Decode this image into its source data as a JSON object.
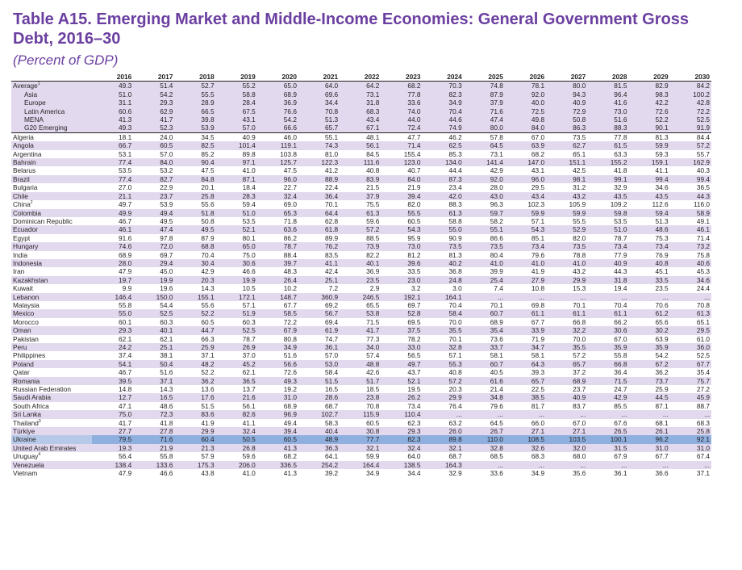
{
  "title": "Table A15. Emerging Market and Middle-Income Economies: General Government Gross Debt, 2016–30",
  "subtitle": "(Percent of GDP)",
  "years": [
    "2016",
    "2017",
    "2018",
    "2019",
    "2020",
    "2021",
    "2022",
    "2023",
    "2024",
    "2025",
    "2026",
    "2027",
    "2028",
    "2029",
    "2030"
  ],
  "aggregates": [
    {
      "name": "Average",
      "note": "1",
      "values": [
        "49.3",
        "51.4",
        "52.7",
        "55.2",
        "65.0",
        "64.0",
        "64.2",
        "68.2",
        "70.3",
        "74.8",
        "78.1",
        "80.0",
        "81.5",
        "82.9",
        "84.2"
      ]
    },
    {
      "name": "Asia",
      "values": [
        "51.0",
        "54.2",
        "55.5",
        "58.8",
        "68.9",
        "69.6",
        "73.1",
        "77.8",
        "82.3",
        "87.9",
        "92.0",
        "94.3",
        "96.4",
        "98.3",
        "100.2"
      ]
    },
    {
      "name": "Europe",
      "values": [
        "31.1",
        "29.3",
        "28.9",
        "28.4",
        "36.9",
        "34.4",
        "31.8",
        "33.6",
        "34.9",
        "37.9",
        "40.0",
        "40.9",
        "41.6",
        "42.2",
        "42.8"
      ]
    },
    {
      "name": "Latin America",
      "values": [
        "60.6",
        "62.9",
        "66.5",
        "67.5",
        "76.6",
        "70.8",
        "68.3",
        "74.0",
        "70.4",
        "71.6",
        "72.5",
        "72.9",
        "73.0",
        "72.6",
        "72.2"
      ]
    },
    {
      "name": "MENA",
      "values": [
        "41.3",
        "41.7",
        "39.8",
        "43.1",
        "54.2",
        "51.3",
        "43.4",
        "44.0",
        "44.6",
        "47.4",
        "49.8",
        "50.8",
        "51.6",
        "52.2",
        "52.5"
      ]
    },
    {
      "name": "G20 Emerging",
      "values": [
        "49.3",
        "52.3",
        "53.9",
        "57.0",
        "66.6",
        "65.7",
        "67.1",
        "72.4",
        "74.9",
        "80.0",
        "84.0",
        "86.3",
        "88.3",
        "90.1",
        "91.9"
      ]
    }
  ],
  "countries": [
    {
      "name": "Algeria",
      "values": [
        "18.1",
        "24.0",
        "34.5",
        "40.9",
        "46.0",
        "55.1",
        "48.1",
        "47.7",
        "46.2",
        "57.8",
        "67.0",
        "73.5",
        "77.8",
        "81.3",
        "84.4"
      ]
    },
    {
      "name": "Angola",
      "values": [
        "66.7",
        "60.5",
        "82.5",
        "101.4",
        "119.1",
        "74.3",
        "56.1",
        "71.4",
        "62.5",
        "64.5",
        "63.9",
        "62.7",
        "61.5",
        "59.9",
        "57.2"
      ]
    },
    {
      "name": "Argentina",
      "values": [
        "53.1",
        "57.0",
        "85.2",
        "89.8",
        "103.8",
        "81.0",
        "84.5",
        "155.4",
        "85.3",
        "73.1",
        "68.2",
        "65.1",
        "63.3",
        "59.3",
        "55.7"
      ]
    },
    {
      "name": "Bahrain",
      "values": [
        "77.4",
        "84.0",
        "90.4",
        "97.1",
        "125.7",
        "122.3",
        "111.6",
        "123.0",
        "134.0",
        "141.4",
        "147.0",
        "151.1",
        "155.2",
        "159.1",
        "162.9"
      ]
    },
    {
      "name": "Belarus",
      "values": [
        "53.5",
        "53.2",
        "47.5",
        "41.0",
        "47.5",
        "41.2",
        "40.8",
        "40.7",
        "44.4",
        "42.9",
        "43.1",
        "42.5",
        "41.8",
        "41.1",
        "40.3"
      ]
    },
    {
      "name": "Brazil",
      "values": [
        "77.4",
        "82.7",
        "84.8",
        "87.1",
        "96.0",
        "88.9",
        "83.9",
        "84.0",
        "87.3",
        "92.0",
        "96.0",
        "98.1",
        "99.1",
        "99.4",
        "99.4"
      ]
    },
    {
      "name": "Bulgaria",
      "values": [
        "27.0",
        "22.9",
        "20.1",
        "18.4",
        "22.7",
        "22.4",
        "21.5",
        "21.9",
        "23.4",
        "28.0",
        "29.5",
        "31.2",
        "32.9",
        "34.6",
        "36.5"
      ]
    },
    {
      "name": "Chile",
      "values": [
        "21.1",
        "23.7",
        "25.8",
        "28.3",
        "32.4",
        "36.4",
        "37.9",
        "39.4",
        "42.0",
        "43.0",
        "43.4",
        "43.2",
        "43.5",
        "43.5",
        "44.3"
      ]
    },
    {
      "name": "China",
      "note": "2",
      "values": [
        "49.7",
        "53.9",
        "55.6",
        "59.4",
        "69.0",
        "70.1",
        "75.5",
        "82.0",
        "88.3",
        "96.3",
        "102.3",
        "105.9",
        "109.2",
        "112.6",
        "116.0"
      ]
    },
    {
      "name": "Colombia",
      "values": [
        "49.9",
        "49.4",
        "51.8",
        "51.0",
        "65.3",
        "64.4",
        "61.3",
        "55.5",
        "61.3",
        "59.7",
        "59.9",
        "59.9",
        "59.8",
        "59.4",
        "58.9"
      ]
    },
    {
      "name": "Dominican Republic",
      "values": [
        "46.7",
        "49.5",
        "50.8",
        "53.5",
        "71.8",
        "62.8",
        "59.6",
        "60.5",
        "58.8",
        "58.2",
        "57.1",
        "55.5",
        "53.5",
        "51.3",
        "49.1"
      ]
    },
    {
      "name": "Ecuador",
      "values": [
        "46.1",
        "47.4",
        "49.5",
        "52.1",
        "63.6",
        "61.8",
        "57.2",
        "54.3",
        "55.0",
        "55.1",
        "54.3",
        "52.9",
        "51.0",
        "48.6",
        "46.1"
      ]
    },
    {
      "name": "Egypt",
      "values": [
        "91.6",
        "97.8",
        "87.9",
        "80.1",
        "86.2",
        "89.9",
        "88.5",
        "95.9",
        "90.9",
        "86.6",
        "85.1",
        "82.0",
        "78.7",
        "75.3",
        "71.4"
      ]
    },
    {
      "name": "Hungary",
      "values": [
        "74.6",
        "72.0",
        "68.8",
        "65.0",
        "78.7",
        "76.2",
        "73.9",
        "73.0",
        "73.5",
        "73.5",
        "73.4",
        "73.5",
        "73.4",
        "73.4",
        "73.2"
      ]
    },
    {
      "name": "India",
      "values": [
        "68.9",
        "69.7",
        "70.4",
        "75.0",
        "88.4",
        "83.5",
        "82.2",
        "81.2",
        "81.3",
        "80.4",
        "79.6",
        "78.8",
        "77.9",
        "76.9",
        "75.8"
      ]
    },
    {
      "name": "Indonesia",
      "values": [
        "28.0",
        "29.4",
        "30.4",
        "30.6",
        "39.7",
        "41.1",
        "40.1",
        "39.6",
        "40.2",
        "41.0",
        "41.0",
        "41.0",
        "40.9",
        "40.8",
        "40.6"
      ]
    },
    {
      "name": "Iran",
      "values": [
        "47.9",
        "45.0",
        "42.9",
        "46.6",
        "48.3",
        "42.4",
        "36.9",
        "33.5",
        "36.8",
        "39.9",
        "41.9",
        "43.2",
        "44.3",
        "45.1",
        "45.3"
      ]
    },
    {
      "name": "Kazakhstan",
      "values": [
        "19.7",
        "19.9",
        "20.3",
        "19.9",
        "26.4",
        "25.1",
        "23.5",
        "23.0",
        "24.8",
        "25.4",
        "27.9",
        "29.9",
        "31.8",
        "33.5",
        "34.6"
      ]
    },
    {
      "name": "Kuwait",
      "values": [
        "9.9",
        "19.6",
        "14.3",
        "10.5",
        "10.2",
        "7.2",
        "2.9",
        "3.2",
        "3.0",
        "7.4",
        "10.8",
        "15.3",
        "19.4",
        "23.5",
        "24.4"
      ]
    },
    {
      "name": "Lebanon",
      "values": [
        "146.4",
        "150.0",
        "155.1",
        "172.1",
        "148.7",
        "360.9",
        "246.5",
        "192.1",
        "164.1",
        "...",
        "...",
        "...",
        "...",
        "...",
        "..."
      ]
    },
    {
      "name": "Malaysia",
      "values": [
        "55.8",
        "54.4",
        "55.6",
        "57.1",
        "67.7",
        "69.2",
        "65.5",
        "69.7",
        "70.4",
        "70.1",
        "69.8",
        "70.1",
        "70.4",
        "70.6",
        "70.8"
      ]
    },
    {
      "name": "Mexico",
      "values": [
        "55.0",
        "52.5",
        "52.2",
        "51.9",
        "58.5",
        "56.7",
        "53.8",
        "52.8",
        "58.4",
        "60.7",
        "61.1",
        "61.1",
        "61.1",
        "61.2",
        "61.3"
      ]
    },
    {
      "name": "Morocco",
      "values": [
        "60.1",
        "60.3",
        "60.5",
        "60.3",
        "72.2",
        "69.4",
        "71.5",
        "69.5",
        "70.0",
        "68.9",
        "67.7",
        "66.8",
        "66.2",
        "65.6",
        "65.1"
      ]
    },
    {
      "name": "Oman",
      "values": [
        "29.3",
        "40.1",
        "44.7",
        "52.5",
        "67.9",
        "61.9",
        "41.7",
        "37.5",
        "35.5",
        "35.4",
        "33.9",
        "32.2",
        "30.6",
        "30.2",
        "29.5"
      ]
    },
    {
      "name": "Pakistan",
      "values": [
        "62.1",
        "62.1",
        "66.3",
        "78.7",
        "80.8",
        "74.7",
        "77.3",
        "78.2",
        "70.1",
        "73.6",
        "71.9",
        "70.0",
        "67.0",
        "63.9",
        "61.0"
      ]
    },
    {
      "name": "Peru",
      "values": [
        "24.2",
        "25.1",
        "25.9",
        "26.9",
        "34.9",
        "36.1",
        "34.0",
        "33.0",
        "32.8",
        "33.7",
        "34.7",
        "35.5",
        "35.9",
        "35.9",
        "36.0"
      ]
    },
    {
      "name": "Philippines",
      "values": [
        "37.4",
        "38.1",
        "37.1",
        "37.0",
        "51.6",
        "57.0",
        "57.4",
        "56.5",
        "57.1",
        "58.1",
        "58.1",
        "57.2",
        "55.8",
        "54.2",
        "52.5"
      ]
    },
    {
      "name": "Poland",
      "values": [
        "54.1",
        "50.4",
        "48.2",
        "45.2",
        "56.6",
        "53.0",
        "48.8",
        "49.7",
        "55.3",
        "60.7",
        "64.3",
        "65.7",
        "66.8",
        "67.2",
        "67.7"
      ]
    },
    {
      "name": "Qatar",
      "values": [
        "46.7",
        "51.6",
        "52.2",
        "62.1",
        "72.6",
        "58.4",
        "42.6",
        "43.7",
        "40.8",
        "40.5",
        "39.3",
        "37.2",
        "36.4",
        "36.2",
        "35.4"
      ]
    },
    {
      "name": "Romania",
      "values": [
        "39.5",
        "37.1",
        "36.2",
        "36.5",
        "49.3",
        "51.5",
        "51.7",
        "52.1",
        "57.2",
        "61.6",
        "65.7",
        "68.9",
        "71.5",
        "73.7",
        "75.7"
      ]
    },
    {
      "name": "Russian Federation",
      "values": [
        "14.8",
        "14.3",
        "13.6",
        "13.7",
        "19.2",
        "16.5",
        "18.5",
        "19.5",
        "20.3",
        "21.4",
        "22.5",
        "23.7",
        "24.7",
        "25.9",
        "27.2"
      ]
    },
    {
      "name": "Saudi Arabia",
      "values": [
        "12.7",
        "16.5",
        "17.6",
        "21.6",
        "31.0",
        "28.6",
        "23.8",
        "26.2",
        "29.9",
        "34.8",
        "38.5",
        "40.9",
        "42.9",
        "44.5",
        "45.9"
      ]
    },
    {
      "name": "South Africa",
      "values": [
        "47.1",
        "48.6",
        "51.5",
        "56.1",
        "68.9",
        "68.7",
        "70.8",
        "73.4",
        "76.4",
        "79.6",
        "81.7",
        "83.7",
        "85.5",
        "87.1",
        "88.7"
      ]
    },
    {
      "name": "Sri Lanka",
      "values": [
        "75.0",
        "72.3",
        "83.6",
        "82.6",
        "96.9",
        "102.7",
        "115.9",
        "110.4",
        "...",
        "...",
        "...",
        "...",
        "...",
        "...",
        "..."
      ]
    },
    {
      "name": "Thailand",
      "note": "3",
      "values": [
        "41.7",
        "41.8",
        "41.9",
        "41.1",
        "49.4",
        "58.3",
        "60.5",
        "62.3",
        "63.2",
        "64.5",
        "66.0",
        "67.0",
        "67.6",
        "68.1",
        "68.3"
      ]
    },
    {
      "name": "Türkiye",
      "values": [
        "27.7",
        "27.8",
        "29.9",
        "32.4",
        "39.4",
        "40.4",
        "30.8",
        "29.3",
        "26.0",
        "26.7",
        "27.1",
        "27.1",
        "26.5",
        "26.1",
        "25.8"
      ]
    },
    {
      "name": "Ukraine",
      "values": [
        "79.5",
        "71.6",
        "60.4",
        "50.5",
        "60.5",
        "48.9",
        "77.7",
        "82.3",
        "89.8",
        "110.0",
        "108.5",
        "103.5",
        "100.1",
        "96.2",
        "92.1"
      ]
    },
    {
      "name": "United Arab Emirates",
      "values": [
        "19.3",
        "21.9",
        "21.3",
        "26.8",
        "41.3",
        "36.3",
        "32.1",
        "32.4",
        "32.1",
        "32.8",
        "32.6",
        "32.0",
        "31.5",
        "31.0",
        "31.0"
      ]
    },
    {
      "name": "Uruguay",
      "note": "4",
      "values": [
        "56.4",
        "55.8",
        "57.9",
        "59.6",
        "68.2",
        "64.1",
        "59.9",
        "64.0",
        "68.7",
        "68.5",
        "68.3",
        "68.0",
        "67.9",
        "67.7",
        "67.4"
      ]
    },
    {
      "name": "Venezuela",
      "values": [
        "138.4",
        "133.6",
        "175.3",
        "206.0",
        "336.5",
        "254.2",
        "164.4",
        "138.5",
        "164.3",
        "...",
        "...",
        "...",
        "...",
        "...",
        "..."
      ]
    },
    {
      "name": "Vietnam",
      "values": [
        "47.9",
        "46.6",
        "43.8",
        "41.0",
        "41.3",
        "39.2",
        "34.9",
        "34.4",
        "32.9",
        "33.6",
        "34.9",
        "35.6",
        "36.1",
        "36.6",
        "37.1"
      ]
    }
  ]
}
